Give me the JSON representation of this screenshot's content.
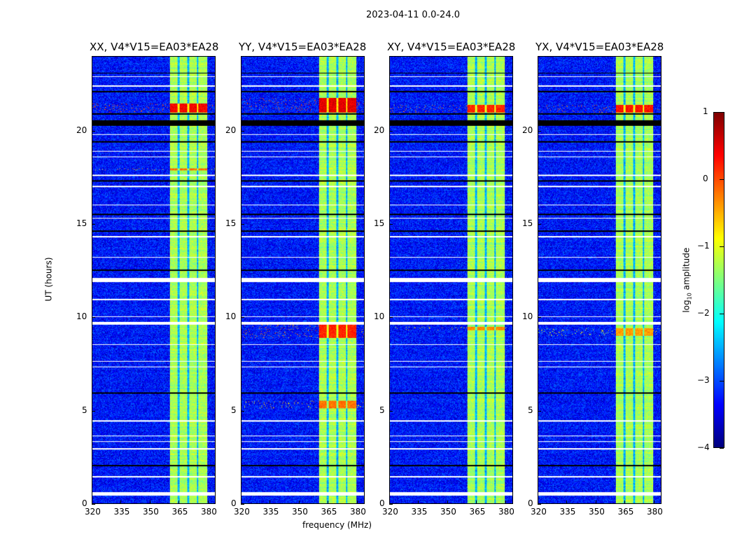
{
  "title": "2023-04-11 0.0-24.0",
  "chart_data": {
    "type": "heatmap",
    "title": "2023-04-11 0.0-24.0",
    "xlabel": "frequency (MHz)",
    "ylabel": "UT (hours)",
    "xlim": [
      320,
      384
    ],
    "ylim": [
      0,
      24
    ],
    "xticks": [
      "320",
      "335",
      "350",
      "365",
      "380"
    ],
    "yticks": [
      "0",
      "5",
      "10",
      "15",
      "20"
    ],
    "colorbar": {
      "label_prefix": "log",
      "label_sub": "10",
      "label_suffix": " amplitude",
      "range": [
        -4,
        1
      ],
      "ticks": [
        "1",
        "0",
        "−1",
        "−2",
        "−3",
        "−4"
      ],
      "colormap": "jet"
    },
    "panels": [
      {
        "title": "XX, V4*V15=EA03*EA28",
        "hot_rows": [
          [
            21.0,
            21.5,
            0.4
          ],
          [
            17.9,
            18.0,
            -0.2
          ]
        ]
      },
      {
        "title": "YY, V4*V15=EA03*EA28",
        "hot_rows": [
          [
            21.0,
            21.8,
            0.5
          ],
          [
            8.9,
            9.6,
            0.2
          ],
          [
            5.1,
            5.5,
            -0.2
          ]
        ]
      },
      {
        "title": "XY, V4*V15=EA03*EA28",
        "hot_rows": [
          [
            21.0,
            21.4,
            0.2
          ],
          [
            9.3,
            9.5,
            -0.3
          ]
        ]
      },
      {
        "title": "YX, V4*V15=EA03*EA28",
        "hot_rows": [
          [
            21.0,
            21.4,
            0.3
          ],
          [
            9.0,
            9.4,
            -0.4
          ]
        ]
      }
    ],
    "background_level": -3.3,
    "band_mhz": [
      360.5,
      380
    ],
    "band_level": -1.3,
    "band_gaps_mhz": [
      365,
      370,
      375
    ],
    "flagged_rows_white": [
      [
        0.4,
        0.6
      ],
      [
        1.4,
        1.45
      ],
      [
        2.9,
        2.95
      ],
      [
        3.3,
        3.35
      ],
      [
        3.6,
        3.65
      ],
      [
        4.4,
        4.45
      ],
      [
        7.3,
        7.35
      ],
      [
        7.6,
        7.65
      ],
      [
        8.5,
        8.55
      ],
      [
        9.6,
        9.75
      ],
      [
        10.0,
        10.05
      ],
      [
        10.9,
        11.0
      ],
      [
        11.9,
        12.1
      ],
      [
        13.2,
        13.25
      ],
      [
        14.3,
        14.35
      ],
      [
        15.3,
        15.35
      ],
      [
        16.0,
        16.05
      ],
      [
        17.0,
        17.05
      ],
      [
        17.6,
        17.65
      ],
      [
        18.6,
        18.65
      ],
      [
        18.9,
        18.95
      ],
      [
        19.8,
        19.85
      ],
      [
        22.4,
        22.45
      ],
      [
        22.9,
        22.95
      ]
    ],
    "flagged_rows_black": [
      [
        2.0,
        2.07
      ],
      [
        5.9,
        5.95
      ],
      [
        12.5,
        12.55
      ],
      [
        14.6,
        14.65
      ],
      [
        15.5,
        15.55
      ],
      [
        17.3,
        17.35
      ],
      [
        19.4,
        19.45
      ],
      [
        20.3,
        20.6
      ],
      [
        20.9,
        20.95
      ],
      [
        22.1,
        22.15
      ],
      [
        23.1,
        23.15
      ]
    ]
  }
}
